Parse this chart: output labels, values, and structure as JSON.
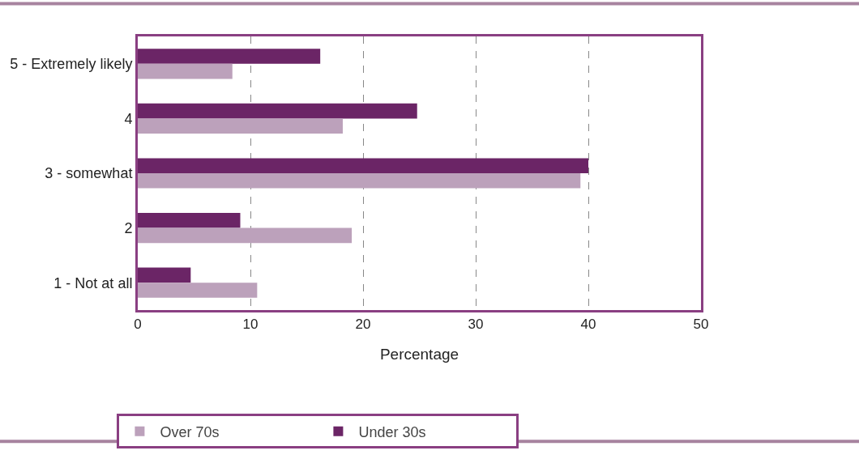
{
  "chart_data": {
    "type": "bar",
    "orientation": "horizontal",
    "xlabel": "Percentage",
    "categories": [
      "5 - Extremely likely",
      "4",
      "3 - somewhat",
      "2",
      "1 - Not at all"
    ],
    "series": [
      {
        "name": "Under 30s",
        "color": "#6b2566",
        "values": [
          16.2,
          24.8,
          40,
          9.1,
          4.7
        ]
      },
      {
        "name": "Over 70s",
        "color": "#bca1bb",
        "values": [
          8.4,
          18.2,
          39.3,
          19.0,
          10.6
        ]
      }
    ],
    "xlim": [
      0,
      50
    ],
    "xticks": [
      0,
      10,
      20,
      30,
      40,
      50
    ],
    "grid": "x",
    "legend": "bottom"
  }
}
